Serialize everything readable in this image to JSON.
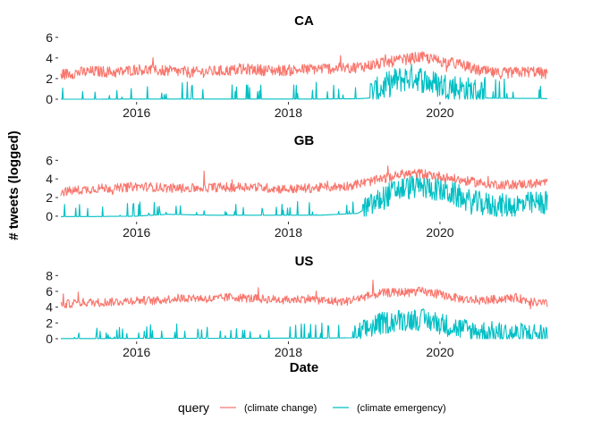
{
  "chart_data": {
    "type": "line",
    "ylabel": "# tweets (logged)",
    "xlabel": "Date",
    "x_range": [
      "2015-01-01",
      "2021-06-01"
    ],
    "x_ticks": [
      "2016",
      "2018",
      "2020"
    ],
    "grid": false,
    "legend": {
      "title": "query",
      "placement": "bottom",
      "entries": [
        {
          "name": "(climate change)",
          "color": "#F8766D"
        },
        {
          "name": "(climate emergency)",
          "color": "#00BFC4"
        }
      ]
    },
    "panels": [
      {
        "title": "CA",
        "ylim": [
          0,
          6.5
        ],
        "y_ticks": [
          "0",
          "2",
          "4",
          "6"
        ],
        "series": [
          {
            "name": "(climate change)",
            "x": [
              "2015-01",
              "2015-04",
              "2015-07",
              "2015-10",
              "2016-01",
              "2016-04",
              "2016-07",
              "2016-10",
              "2017-01",
              "2017-04",
              "2017-07",
              "2017-10",
              "2018-01",
              "2018-04",
              "2018-07",
              "2018-10",
              "2019-01",
              "2019-04",
              "2019-07",
              "2019-10",
              "2020-01",
              "2020-04",
              "2020-07",
              "2020-10",
              "2021-01",
              "2021-04",
              "2021-06"
            ],
            "y": [
              2.4,
              2.6,
              2.7,
              2.6,
              2.9,
              2.8,
              2.7,
              2.6,
              2.7,
              2.8,
              2.9,
              2.8,
              2.8,
              2.9,
              3.0,
              3.0,
              3.2,
              3.5,
              3.8,
              4.1,
              3.7,
              3.4,
              2.8,
              2.5,
              2.6,
              2.7,
              2.4
            ],
            "noise": 0.55
          },
          {
            "name": "(climate emergency)",
            "x": [
              "2015-01",
              "2015-06",
              "2016-01",
              "2016-06",
              "2017-01",
              "2017-06",
              "2018-01",
              "2018-06",
              "2018-12",
              "2019-03",
              "2019-06",
              "2019-09",
              "2019-12",
              "2020-03",
              "2020-06",
              "2020-09",
              "2020-12",
              "2021-03",
              "2021-06"
            ],
            "y": [
              0.0,
              0.0,
              0.1,
              0.1,
              0.1,
              0.1,
              0.1,
              0.1,
              0.2,
              0.8,
              1.8,
              2.2,
              1.5,
              1.2,
              0.8,
              0.5,
              0.4,
              0.4,
              0.3
            ],
            "noise": 0.6
          }
        ]
      },
      {
        "title": "GB",
        "ylim": [
          -0.3,
          6.8
        ],
        "y_ticks": [
          "0",
          "2",
          "4",
          "6"
        ],
        "series": [
          {
            "name": "(climate change)",
            "x": [
              "2015-01",
              "2015-04",
              "2015-07",
              "2015-10",
              "2016-01",
              "2016-04",
              "2016-07",
              "2016-10",
              "2017-01",
              "2017-04",
              "2017-07",
              "2017-10",
              "2018-01",
              "2018-04",
              "2018-07",
              "2018-10",
              "2019-01",
              "2019-04",
              "2019-07",
              "2019-10",
              "2020-01",
              "2020-04",
              "2020-07",
              "2020-10",
              "2021-01",
              "2021-04",
              "2021-06"
            ],
            "y": [
              2.6,
              2.8,
              3.0,
              3.0,
              3.2,
              3.1,
              3.0,
              3.0,
              3.1,
              3.1,
              3.2,
              3.0,
              2.9,
              3.0,
              3.1,
              3.2,
              3.6,
              4.0,
              4.5,
              4.6,
              4.3,
              3.9,
              3.6,
              3.4,
              3.4,
              3.5,
              3.6
            ],
            "noise": 0.5
          },
          {
            "name": "(climate emergency)",
            "x": [
              "2015-01",
              "2015-06",
              "2016-01",
              "2016-06",
              "2017-01",
              "2017-06",
              "2018-01",
              "2018-06",
              "2018-12",
              "2019-03",
              "2019-06",
              "2019-09",
              "2019-12",
              "2020-03",
              "2020-06",
              "2020-09",
              "2020-12",
              "2021-03",
              "2021-06"
            ],
            "y": [
              -0.2,
              -0.2,
              0.0,
              0.2,
              0.1,
              0.1,
              0.1,
              0.1,
              0.3,
              1.5,
              2.8,
              3.2,
              3.0,
              2.4,
              1.5,
              1.2,
              1.1,
              1.3,
              1.5
            ],
            "noise": 0.6
          }
        ]
      },
      {
        "title": "US",
        "ylim": [
          0,
          8.6
        ],
        "y_ticks": [
          "0",
          "2",
          "4",
          "6",
          "8"
        ],
        "series": [
          {
            "name": "(climate change)",
            "x": [
              "2015-01",
              "2015-04",
              "2015-07",
              "2015-10",
              "2016-01",
              "2016-04",
              "2016-07",
              "2016-10",
              "2017-01",
              "2017-04",
              "2017-07",
              "2017-10",
              "2018-01",
              "2018-04",
              "2018-07",
              "2018-10",
              "2019-01",
              "2019-04",
              "2019-07",
              "2019-10",
              "2020-01",
              "2020-04",
              "2020-07",
              "2020-10",
              "2021-01",
              "2021-04",
              "2021-06"
            ],
            "y": [
              4.3,
              4.6,
              4.6,
              4.7,
              4.9,
              4.8,
              5.1,
              5.2,
              5.0,
              5.3,
              5.1,
              5.0,
              4.9,
              5.1,
              4.8,
              4.7,
              5.3,
              5.8,
              5.9,
              6.0,
              5.6,
              5.1,
              4.8,
              5.0,
              5.2,
              4.6,
              4.4
            ],
            "noise": 0.55
          },
          {
            "name": "(climate emergency)",
            "x": [
              "2015-01",
              "2015-06",
              "2016-01",
              "2016-06",
              "2017-01",
              "2017-06",
              "2018-01",
              "2018-06",
              "2018-12",
              "2019-03",
              "2019-06",
              "2019-09",
              "2019-12",
              "2020-03",
              "2020-06",
              "2020-09",
              "2020-12",
              "2021-03",
              "2021-06"
            ],
            "y": [
              0.1,
              0.1,
              0.2,
              0.3,
              0.3,
              0.3,
              0.4,
              0.4,
              0.6,
              1.8,
              2.3,
              2.5,
              2.2,
              1.5,
              1.0,
              0.8,
              0.6,
              0.6,
              0.6
            ],
            "noise": 0.65
          }
        ]
      }
    ]
  }
}
